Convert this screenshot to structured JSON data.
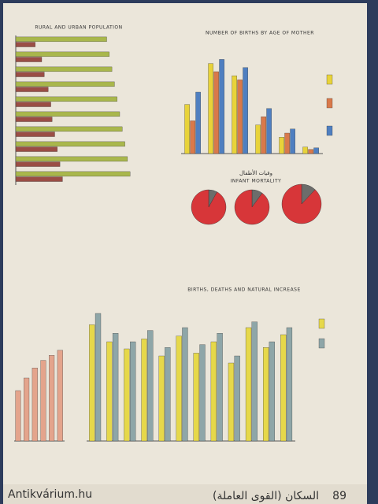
{
  "chart_data": [
    {
      "type": "hbar",
      "title": "RURAL AND URBAN POPULATION",
      "categories": [
        null,
        null,
        null,
        null,
        null,
        null,
        null,
        null,
        null,
        null
      ],
      "series": [
        {
          "color": "#a9b74c",
          "values": [
            70,
            72,
            74,
            76,
            78,
            80,
            82,
            84,
            86,
            88
          ]
        },
        {
          "color": "#9a4e45",
          "values": [
            15,
            20,
            22,
            25,
            27,
            28,
            30,
            32,
            34,
            36
          ]
        }
      ],
      "xlim": [
        0,
        100
      ]
    },
    {
      "type": "bar",
      "title": "NUMBER OF BIRTHS BY AGE OF MOTHER",
      "categories": [
        null,
        null,
        null,
        null,
        null,
        null
      ],
      "series": [
        {
          "color": "#e8d33a",
          "values": [
            60,
            110,
            95,
            35,
            20,
            8
          ]
        },
        {
          "color": "#d9794a",
          "values": [
            40,
            100,
            90,
            45,
            25,
            5
          ]
        },
        {
          "color": "#4f7fc0",
          "values": [
            75,
            115,
            105,
            55,
            30,
            7
          ]
        }
      ],
      "ylim": [
        0,
        125
      ]
    },
    {
      "type": "pie",
      "title_ar": "وفيات الأطفال",
      "title": "INFANT MORTALITY",
      "colors": [
        "#6c6d6b",
        "#d73639"
      ],
      "pies": [
        [
          8,
          92
        ],
        [
          10,
          90
        ],
        [
          12,
          88
        ]
      ]
    },
    {
      "type": "bar",
      "categories": [
        null,
        null,
        null,
        null,
        null,
        null
      ],
      "series": [
        {
          "color": "#e4a48c",
          "values": [
            40,
            50,
            58,
            64,
            68,
            72
          ]
        }
      ],
      "ylim": [
        0,
        100
      ]
    },
    {
      "type": "bar",
      "title": "BIRTHS, DEATHS AND NATURAL INCREASE",
      "categories": [
        null,
        null,
        null,
        null,
        null,
        null,
        null,
        null,
        null,
        null,
        null,
        null
      ],
      "series": [
        {
          "color": "#e6d84a",
          "values": [
            82,
            70,
            65,
            72,
            60,
            74,
            62,
            70,
            55,
            80,
            66,
            75
          ]
        },
        {
          "color": "#8ea6a8",
          "values": [
            90,
            76,
            70,
            78,
            66,
            80,
            68,
            76,
            60,
            84,
            70,
            80
          ]
        }
      ],
      "ylim": [
        0,
        100
      ]
    }
  ],
  "footer": {
    "page": "89",
    "title": "السكان (القوى العاملة)",
    "watermark": "Antikvárium.hu"
  }
}
